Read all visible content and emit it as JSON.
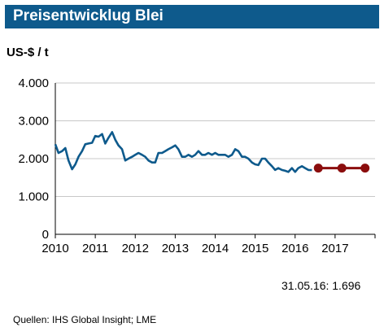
{
  "header": {
    "title": "Preisentwicklug Blei"
  },
  "unit_label": "US-$ / t",
  "last_value_note": "31.05.16: 1.696",
  "source": "Quellen:  IHS Global Insight; LME",
  "colors": {
    "header_bg": "#0e5a8c",
    "actual_line": "#0e5a8c",
    "forecast": "#8b0d0d",
    "grid": "#c8c8c8"
  },
  "chart_data": {
    "type": "line",
    "title": "Preisentwicklug Blei",
    "ylabel": "US-$ / t",
    "ylim": [
      0,
      4000
    ],
    "xlim": [
      2010,
      2018
    ],
    "y_ticks": [
      "0",
      "1.000",
      "2.000",
      "3.000",
      "4.000"
    ],
    "x_ticks": [
      "2010",
      "2011",
      "2012",
      "2013",
      "2014",
      "2015",
      "2016",
      "2017"
    ],
    "grid": true,
    "series": [
      {
        "type": "line",
        "x": [
          2010.0,
          2010.08,
          2010.17,
          2010.25,
          2010.33,
          2010.42,
          2010.5,
          2010.58,
          2010.67,
          2010.75,
          2010.83,
          2010.92,
          2011.0,
          2011.08,
          2011.17,
          2011.25,
          2011.33,
          2011.42,
          2011.5,
          2011.58,
          2011.67,
          2011.75,
          2011.83,
          2011.92,
          2012.0,
          2012.08,
          2012.17,
          2012.25,
          2012.33,
          2012.42,
          2012.5,
          2012.58,
          2012.67,
          2012.75,
          2012.83,
          2012.92,
          2013.0,
          2013.08,
          2013.17,
          2013.25,
          2013.33,
          2013.42,
          2013.5,
          2013.58,
          2013.67,
          2013.75,
          2013.83,
          2013.92,
          2014.0,
          2014.08,
          2014.17,
          2014.25,
          2014.33,
          2014.42,
          2014.5,
          2014.58,
          2014.67,
          2014.75,
          2014.83,
          2014.92,
          2015.0,
          2015.08,
          2015.17,
          2015.25,
          2015.33,
          2015.42,
          2015.5,
          2015.58,
          2015.67,
          2015.75,
          2015.83,
          2015.92,
          2016.0,
          2016.08,
          2016.17,
          2016.25,
          2016.33,
          2016.42
        ],
        "values": [
          2380,
          2150,
          2200,
          2280,
          1950,
          1720,
          1850,
          2050,
          2200,
          2380,
          2400,
          2420,
          2600,
          2580,
          2650,
          2400,
          2550,
          2700,
          2500,
          2350,
          2250,
          1950,
          2000,
          2050,
          2100,
          2150,
          2100,
          2050,
          1950,
          1900,
          1900,
          2150,
          2150,
          2200,
          2250,
          2300,
          2350,
          2250,
          2050,
          2050,
          2100,
          2050,
          2100,
          2200,
          2100,
          2100,
          2150,
          2100,
          2150,
          2100,
          2100,
          2100,
          2050,
          2100,
          2250,
          2200,
          2050,
          2050,
          2000,
          1900,
          1850,
          1830,
          2000,
          2000,
          1900,
          1800,
          1700,
          1750,
          1700,
          1680,
          1650,
          1750,
          1650,
          1750,
          1800,
          1750,
          1700,
          1696
        ]
      },
      {
        "type": "forecast",
        "x": [
          2016.58,
          2017.17,
          2017.75
        ],
        "values": [
          1750,
          1750,
          1750
        ]
      }
    ]
  }
}
